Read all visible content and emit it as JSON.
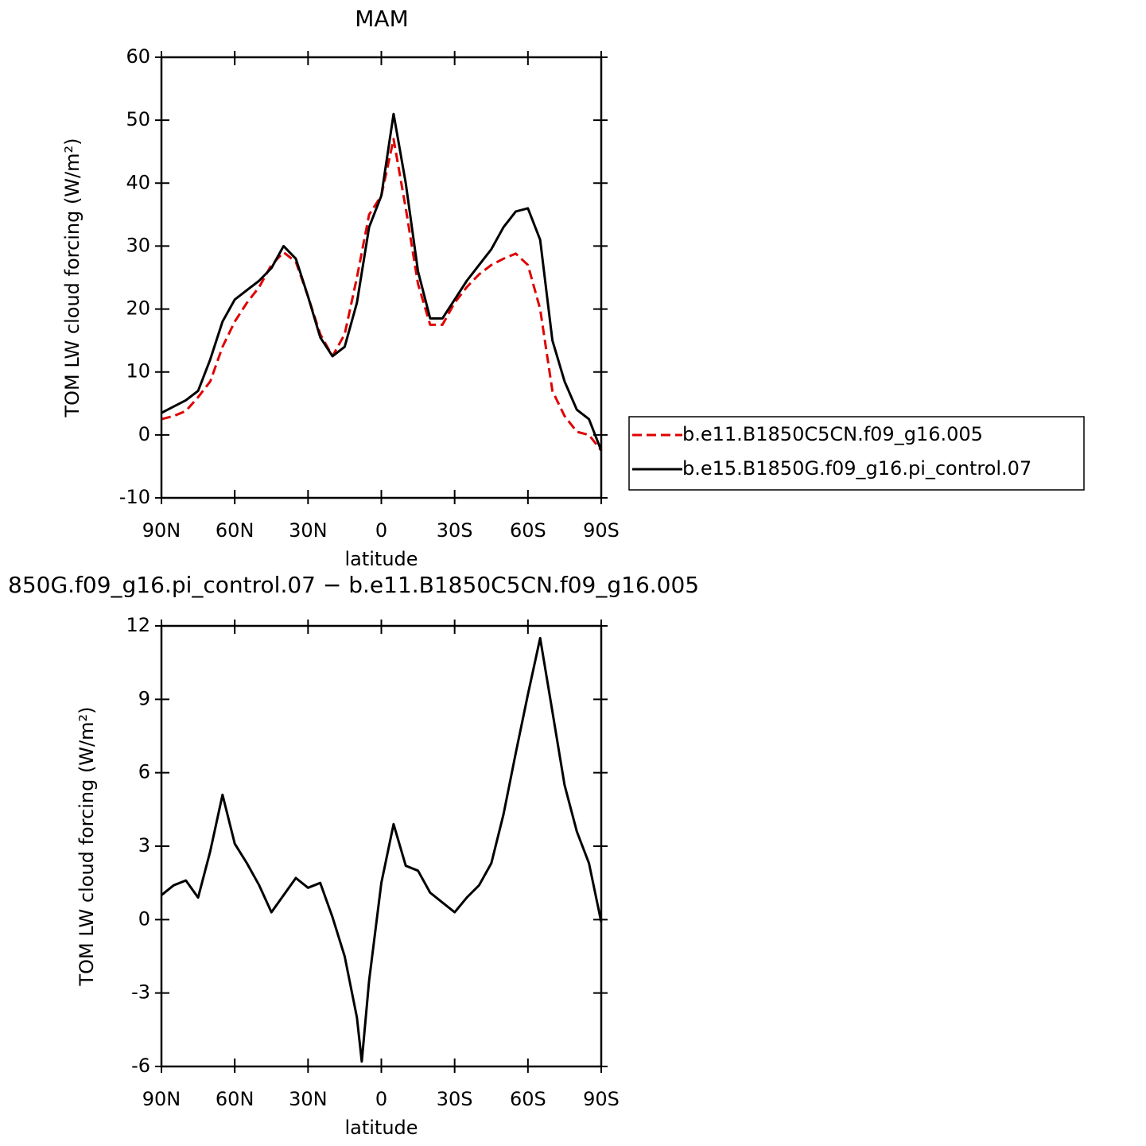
{
  "chart_data": [
    {
      "type": "line",
      "title": "MAM",
      "xlabel": "latitude",
      "ylabel": "TOM LW cloud forcing (W/m²)",
      "x": [
        90,
        85,
        80,
        75,
        70,
        65,
        60,
        55,
        50,
        45,
        40,
        35,
        30,
        25,
        20,
        15,
        10,
        5,
        0,
        -5,
        -10,
        -15,
        -20,
        -25,
        -30,
        -35,
        -40,
        -45,
        -50,
        -55,
        -60,
        -65,
        -70,
        -75,
        -80,
        -85,
        -90
      ],
      "series": [
        {
          "name": "b.e11.B1850C5CN.f09_g16.005",
          "color": "#e00000",
          "dashed": true,
          "values": [
            2.5,
            3,
            3.8,
            6,
            8.5,
            14,
            18,
            21,
            23.5,
            27,
            29,
            27.5,
            22,
            16,
            12.5,
            16,
            25,
            35,
            38,
            47,
            36,
            24,
            17.5,
            17.5,
            21,
            23.5,
            25.5,
            27,
            28,
            28.8,
            27,
            20,
            7,
            3,
            0.5,
            0,
            -2.5
          ]
        },
        {
          "name": "b.e15.B1850G.f09_g16.pi_control.07",
          "color": "#000000",
          "dashed": false,
          "values": [
            3.5,
            4.5,
            5.5,
            7,
            12,
            18,
            21.5,
            23,
            24.5,
            26.5,
            30,
            28,
            22,
            15.5,
            12.5,
            14,
            21,
            33,
            38,
            51,
            40,
            26,
            18.5,
            18.5,
            21.5,
            24.5,
            27,
            29.5,
            33,
            35.5,
            36,
            31,
            15,
            8.5,
            4,
            2.5,
            -2.5
          ]
        }
      ],
      "xlim": [
        90,
        -90
      ],
      "xticks": [
        {
          "value": 90,
          "label": "90N"
        },
        {
          "value": 60,
          "label": "60N"
        },
        {
          "value": 30,
          "label": "30N"
        },
        0,
        {
          "value": -30,
          "label": "30S"
        },
        {
          "value": -60,
          "label": "60S"
        },
        {
          "value": -90,
          "label": "90S"
        }
      ],
      "ylim": [
        -10,
        60
      ],
      "yticks": [
        -10,
        0,
        10,
        20,
        30,
        40,
        50,
        60
      ],
      "legend": "outside-right"
    },
    {
      "type": "line",
      "title": "850G.f09_g16.pi_control.07 − b.e11.B1850C5CN.f09_g16.005",
      "xlabel": "latitude",
      "ylabel": "TOM LW cloud forcing (W/m²)",
      "x": [
        90,
        85,
        80,
        75,
        70,
        65,
        60,
        55,
        50,
        45,
        40,
        35,
        30,
        25,
        20,
        15,
        10,
        8,
        5,
        0,
        -5,
        -10,
        -15,
        -20,
        -25,
        -30,
        -35,
        -40,
        -45,
        -50,
        -55,
        -60,
        -65,
        -70,
        -75,
        -80,
        -85,
        -90
      ],
      "series": [
        {
          "color": "#000000",
          "dashed": false,
          "values": [
            1.0,
            1.4,
            1.6,
            0.9,
            2.8,
            5.1,
            3.1,
            2.3,
            1.4,
            0.3,
            1.0,
            1.7,
            1.3,
            1.5,
            0.1,
            -1.5,
            -4.0,
            -5.8,
            -2.5,
            1.5,
            3.9,
            2.2,
            2.0,
            1.1,
            0.7,
            0.3,
            0.9,
            1.4,
            2.3,
            4.3,
            6.8,
            9.2,
            11.5,
            8.5,
            5.5,
            3.6,
            2.3,
            -0.1
          ]
        }
      ],
      "xlim": [
        90,
        -90
      ],
      "xticks": [
        {
          "value": 90,
          "label": "90N"
        },
        {
          "value": 60,
          "label": "60N"
        },
        {
          "value": 30,
          "label": "30N"
        },
        0,
        {
          "value": -30,
          "label": "30S"
        },
        {
          "value": -60,
          "label": "60S"
        },
        {
          "value": -90,
          "label": "90S"
        }
      ],
      "ylim": [
        -6,
        12
      ],
      "yticks": [
        -6,
        -3,
        0,
        3,
        6,
        9,
        12
      ]
    }
  ]
}
